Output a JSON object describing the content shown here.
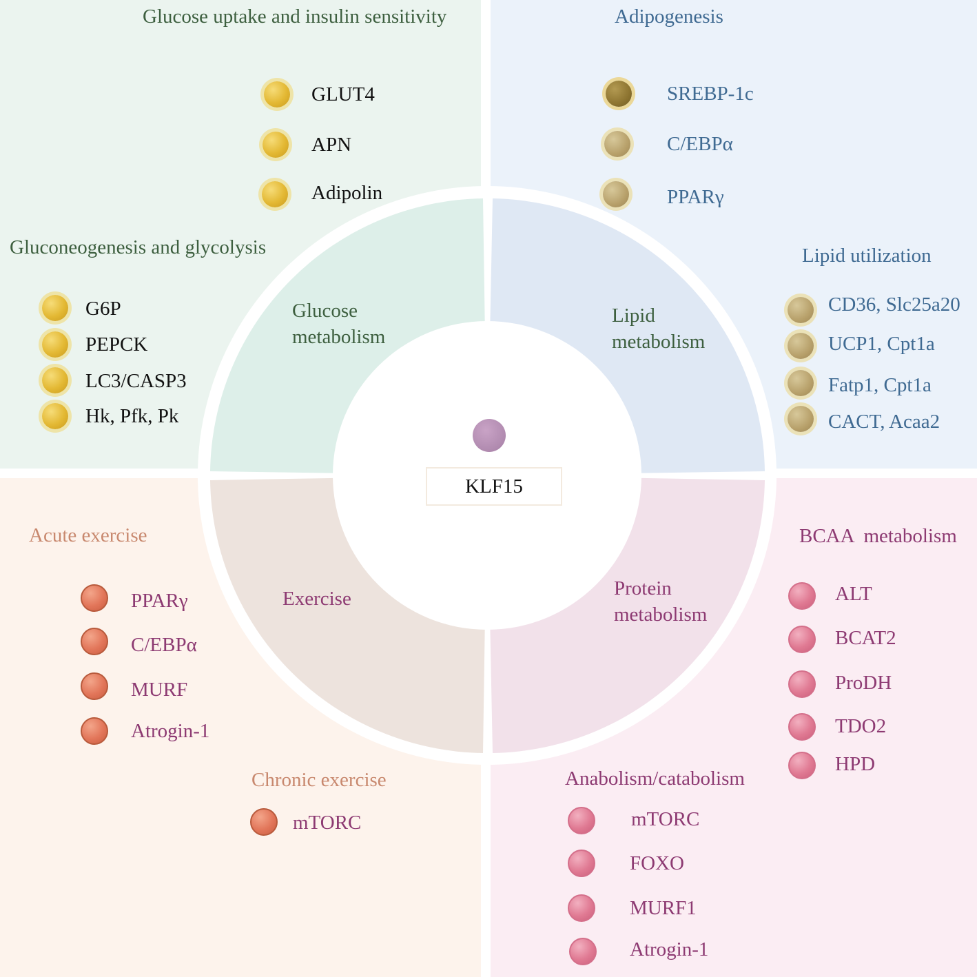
{
  "colors": {
    "green_bg": "#ebf4ef",
    "blue_bg": "#ebf2fa",
    "orange_bg": "#fdf3ec",
    "pink_bg": "#fbedf3",
    "ring_green": "#ddefe9",
    "ring_blue": "#dfe8f4",
    "ring_tan": "#ede3dd",
    "ring_pink": "#f2e1ea"
  },
  "center": {
    "label": "KLF15"
  },
  "ring": {
    "glucose": "Glucose metabolism",
    "lipid": "Lipid metabolism",
    "exercise": "Exercise",
    "protein": "Protein metabolism"
  },
  "glucose_uptake": {
    "title": "Glucose uptake and insulin sensitivity",
    "items": [
      "GLUT4",
      "APN",
      "Adipolin"
    ]
  },
  "gluconeogenesis": {
    "title": "Gluconeogenesis and glycolysis",
    "items": [
      "G6P",
      "PEPCK",
      "LC3/CASP3",
      "Hk, Pfk, Pk"
    ]
  },
  "adipogenesis": {
    "title": "Adipogenesis",
    "items": [
      "SREBP-1c",
      "C/EBPα",
      "PPARγ"
    ]
  },
  "lipid_utilization": {
    "title": "Lipid utilization",
    "items": [
      "CD36, Slc25a20",
      "UCP1, Cpt1a",
      "Fatp1, Cpt1a",
      "CACT, Acaa2"
    ]
  },
  "acute_exercise": {
    "title": "Acute exercise",
    "items": [
      "PPARγ",
      "C/EBPα",
      "MURF",
      "Atrogin-1"
    ]
  },
  "chronic_exercise": {
    "title": "Chronic exercise",
    "items": [
      "mTORC"
    ]
  },
  "bcaa": {
    "title": "BCAA  metabolism",
    "items": [
      "ALT",
      "BCAT2",
      "ProDH",
      "TDO2",
      "HPD"
    ]
  },
  "anabolism": {
    "title": "Anabolism/catabolism",
    "items": [
      "mTORC",
      "FOXO",
      "MURF1",
      "Atrogin-1"
    ]
  }
}
